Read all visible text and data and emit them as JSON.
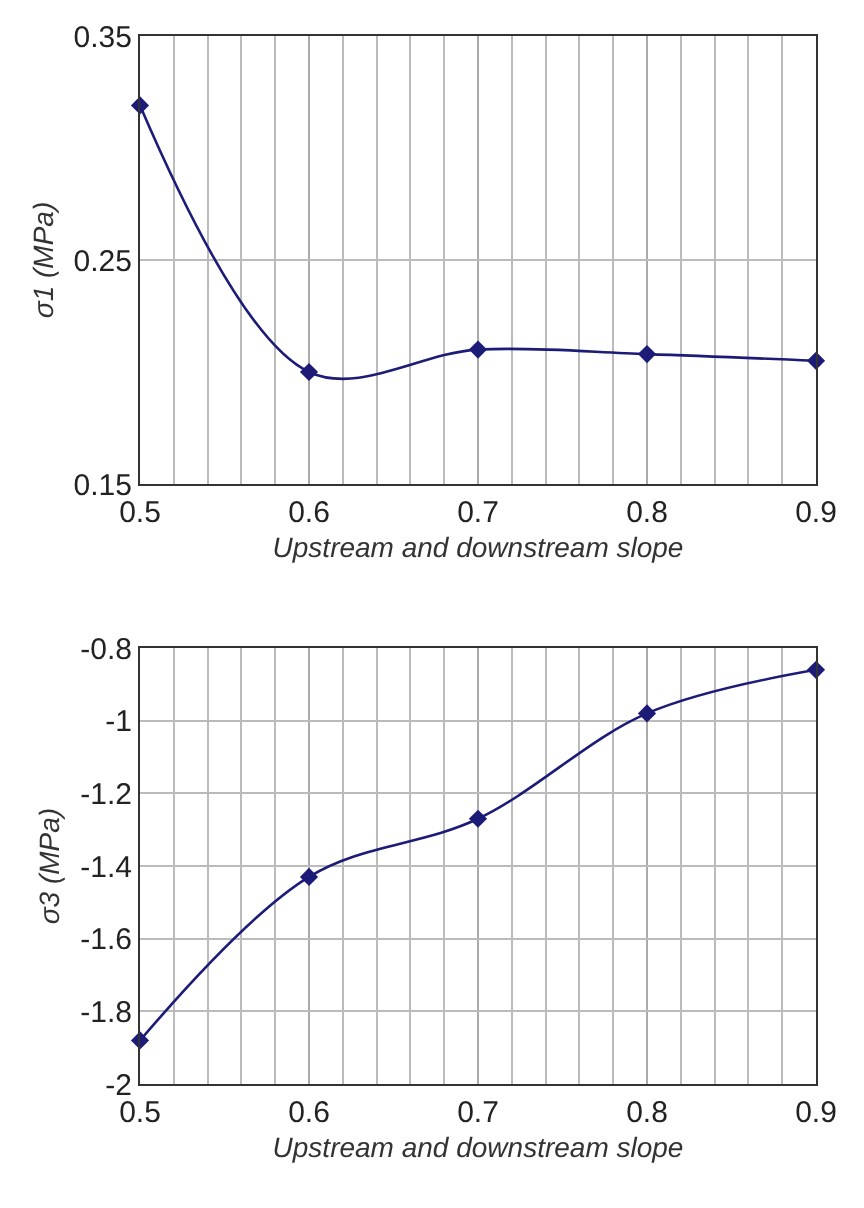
{
  "chart_data": [
    {
      "type": "line",
      "xlabel": "Upstream and downstream slope",
      "ylabel": "σ1 (MPa)",
      "x": [
        0.5,
        0.6,
        0.7,
        0.8,
        0.9
      ],
      "series": [
        {
          "color": "#1c1c78",
          "values": [
            0.319,
            0.2,
            0.21,
            0.208,
            0.205
          ]
        }
      ],
      "xlim": [
        0.5,
        0.9
      ],
      "xticks": [
        0.5,
        0.6,
        0.7,
        0.8,
        0.9
      ],
      "ylim": [
        0.15,
        0.35
      ],
      "yticks": [
        0.15,
        0.25,
        0.35
      ],
      "grid": true,
      "marker": "diamond",
      "line_style": "solid"
    },
    {
      "type": "line",
      "xlabel": "Upstream and downstream slope",
      "ylabel": "σ3 (MPa)",
      "x": [
        0.5,
        0.6,
        0.7,
        0.8,
        0.9
      ],
      "series": [
        {
          "color": "#1c1c78",
          "values": [
            -1.88,
            -1.43,
            -1.27,
            -0.98,
            -0.86
          ]
        }
      ],
      "xlim": [
        0.5,
        0.9
      ],
      "xticks": [
        0.5,
        0.6,
        0.7,
        0.8,
        0.9
      ],
      "ylim": [
        -2,
        -0.8
      ],
      "yticks": [
        -2,
        -1.8,
        -1.6,
        -1.4,
        -1.2,
        -1,
        -0.8
      ],
      "grid": true,
      "marker": "diamond",
      "line_style": "solid"
    }
  ]
}
